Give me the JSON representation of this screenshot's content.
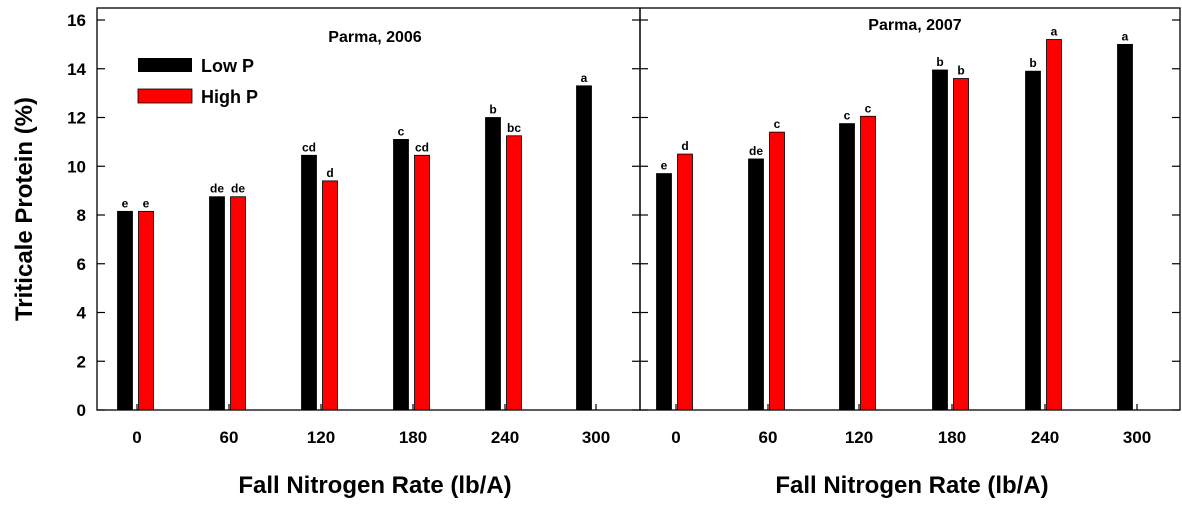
{
  "chart_data": [
    {
      "type": "bar",
      "title": "Parma, 2006",
      "xlabel": "Fall Nitrogen Rate (lb/A)",
      "ylabel": "Triticale Protein (%)",
      "ylim": [
        0,
        16
      ],
      "yticks": [
        "0",
        "2",
        "4",
        "6",
        "8",
        "10",
        "12",
        "14",
        "16"
      ],
      "categories": [
        "0",
        "60",
        "120",
        "180",
        "240",
        "300"
      ],
      "legend": {
        "placement": "top-left",
        "entries": [
          "Low P",
          "High P"
        ]
      },
      "series": [
        {
          "name": "Low P",
          "color": "#000000",
          "values": [
            8.15,
            8.75,
            10.45,
            11.1,
            12.0,
            13.3
          ],
          "labels": [
            "e",
            "de",
            "cd",
            "c",
            "b",
            "a"
          ]
        },
        {
          "name": "High P",
          "color": "#ff0000",
          "values": [
            8.15,
            8.75,
            9.4,
            10.45,
            11.25,
            null
          ],
          "labels": [
            "e",
            "de",
            "d",
            "cd",
            "bc",
            ""
          ]
        }
      ]
    },
    {
      "type": "bar",
      "title": "Parma, 2007",
      "xlabel": "Fall Nitrogen Rate (lb/A)",
      "ylabel": "",
      "ylim": [
        0,
        16
      ],
      "categories": [
        "0",
        "60",
        "120",
        "180",
        "240",
        "300"
      ],
      "series": [
        {
          "name": "Low P",
          "color": "#000000",
          "values": [
            9.7,
            10.3,
            11.75,
            13.95,
            13.9,
            15.0
          ],
          "labels": [
            "e",
            "de",
            "c",
            "b",
            "b",
            "a"
          ]
        },
        {
          "name": "High P",
          "color": "#ff0000",
          "values": [
            10.5,
            11.4,
            12.05,
            13.6,
            15.2,
            null
          ],
          "labels": [
            "d",
            "c",
            "c",
            "b",
            "a",
            ""
          ]
        }
      ]
    }
  ]
}
